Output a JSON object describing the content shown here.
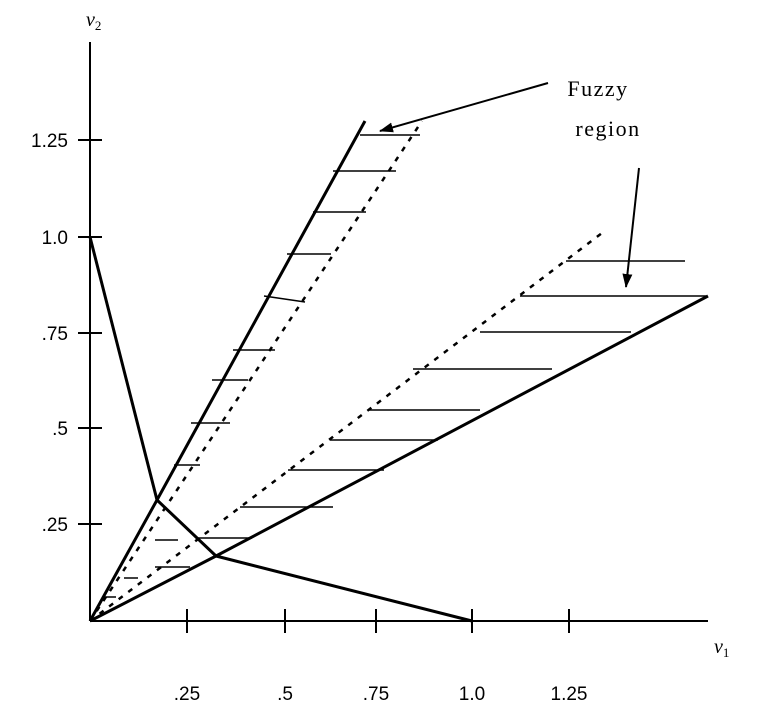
{
  "axes": {
    "x_label": {
      "main": "v",
      "sub": "1"
    },
    "y_label": {
      "main": "v",
      "sub": "2"
    },
    "x_ticks": [
      {
        "value": 0.25,
        "label": ".25"
      },
      {
        "value": 0.5,
        "label": ".5"
      },
      {
        "value": 0.75,
        "label": ".75"
      },
      {
        "value": 1.0,
        "label": "1.0"
      },
      {
        "value": 1.25,
        "label": "1.25"
      }
    ],
    "y_ticks": [
      {
        "value": 0.25,
        "label": ".25"
      },
      {
        "value": 0.5,
        "label": ".5"
      },
      {
        "value": 0.75,
        "label": ".75"
      },
      {
        "value": 1.0,
        "label": "1.0"
      },
      {
        "value": 1.25,
        "label": "1.25"
      }
    ]
  },
  "annotation": {
    "line1": "Fuzzy",
    "line2": "region"
  }
}
